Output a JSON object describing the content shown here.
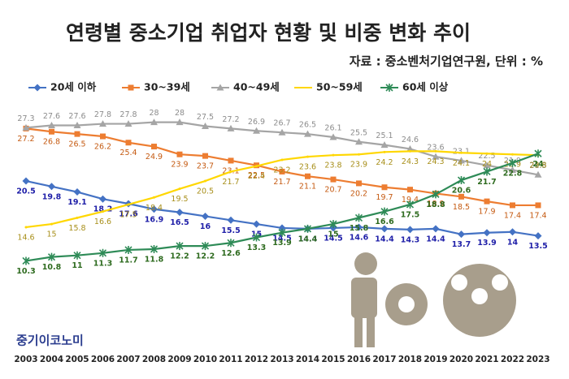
{
  "chart_data": {
    "type": "line",
    "title": "연령별 중소기업 취업자 현황 및 비중 변화 추이",
    "subtitle": "자료 : 중소벤처기업연구원, 단위 : %",
    "brand": "중기이코노미",
    "categories": [
      "2003",
      "2004",
      "2005",
      "2006",
      "2007",
      "2008",
      "2009",
      "2010",
      "2011",
      "2012",
      "2013",
      "2014",
      "2015",
      "2016",
      "2017",
      "2018",
      "2019",
      "2020",
      "2021",
      "2022",
      "2023"
    ],
    "ylim": [
      9,
      29
    ],
    "series": [
      {
        "name": "20세 이하",
        "color": "#4472c4",
        "marker": "diamond",
        "label_color": "#1f1fa8",
        "values": [
          20.5,
          19.8,
          19.1,
          18.2,
          17.6,
          16.9,
          16.5,
          16,
          15.5,
          15,
          14.5,
          14.4,
          14.5,
          14.6,
          14.4,
          14.3,
          14.4,
          13.7,
          13.9,
          14,
          13.5
        ]
      },
      {
        "name": "30~39세",
        "color": "#ed7d31",
        "marker": "square",
        "label_color": "#c55a11",
        "values": [
          27.2,
          26.8,
          26.5,
          26.2,
          25.4,
          24.9,
          23.9,
          23.7,
          23.1,
          22.5,
          21.7,
          21.1,
          20.7,
          20.2,
          19.7,
          19.4,
          18.9,
          18.5,
          17.9,
          17.4,
          17.4
        ]
      },
      {
        "name": "40~49세",
        "color": "#a5a5a5",
        "marker": "triangle",
        "label_color": "#8c8c8c",
        "values": [
          27.3,
          27.6,
          27.6,
          27.8,
          27.8,
          28,
          28,
          27.5,
          27.2,
          26.9,
          26.7,
          26.5,
          26.1,
          25.5,
          25.1,
          24.6,
          23.6,
          23.1,
          22.5,
          21.9,
          21.3
        ]
      },
      {
        "name": "50~59세",
        "color": "#ffd700",
        "marker": "none",
        "label_color": "#a88f1a",
        "values": [
          14.6,
          15,
          15.8,
          16.6,
          17.5,
          18.4,
          19.5,
          20.5,
          21.7,
          22.4,
          23.2,
          23.6,
          23.8,
          23.9,
          24.2,
          24.3,
          24.3,
          24.1,
          24,
          23.9,
          23.8
        ]
      },
      {
        "name": "60세 이상",
        "color": "#2e8b57",
        "marker": "star",
        "label_color": "#2e6b1f",
        "values": [
          10.3,
          10.8,
          11,
          11.3,
          11.7,
          11.8,
          12.2,
          12.2,
          12.6,
          13.3,
          13.9,
          14.4,
          15,
          15.8,
          16.6,
          17.5,
          18.8,
          20.6,
          21.7,
          22.8,
          24
        ]
      }
    ]
  }
}
